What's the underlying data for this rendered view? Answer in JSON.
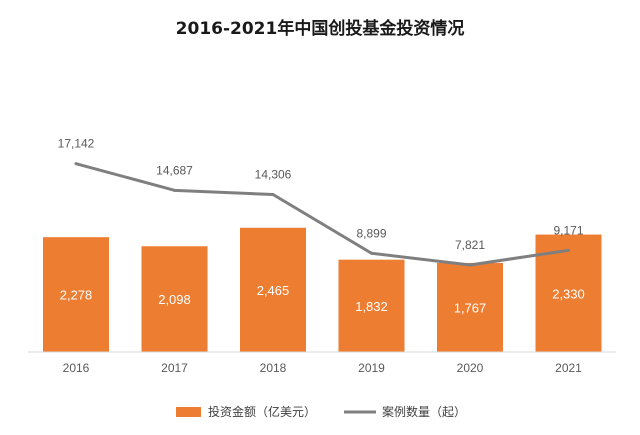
{
  "chart_data": {
    "type": "bar",
    "title": "2016-2021年中国创投基金投资情况",
    "categories": [
      "2016",
      "2017",
      "2018",
      "2019",
      "2020",
      "2021"
    ],
    "series": [
      {
        "name": "投资金额（亿美元）",
        "type": "bar",
        "values": [
          2278,
          2098,
          2465,
          1832,
          1767,
          2330
        ],
        "labels": [
          "2,278",
          "2,098",
          "2,465",
          "1,832",
          "1,767",
          "2,330"
        ],
        "color": "#ED7D31"
      },
      {
        "name": "案例数量（起）",
        "type": "line",
        "values": [
          17142,
          14687,
          14306,
          8899,
          7821,
          9171
        ],
        "labels": [
          "17,142",
          "14,687",
          "14,306",
          "8,899",
          "7,821",
          "9,171"
        ],
        "color": "#7F7F7F"
      }
    ],
    "legend_position": "bottom",
    "grid": false
  }
}
